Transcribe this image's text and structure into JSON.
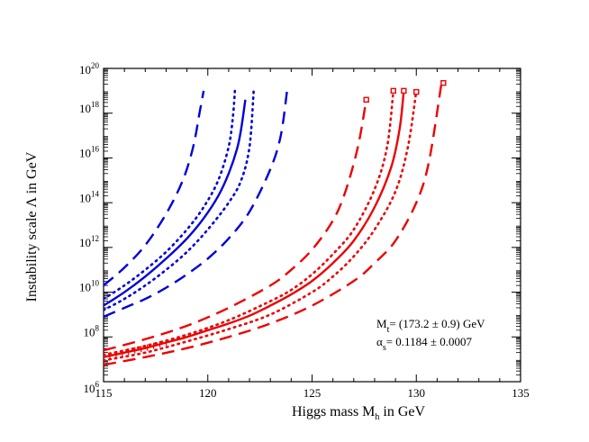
{
  "chart_data": {
    "type": "line",
    "title": "",
    "xlabel": {
      "main": "Higgs mass M",
      "sub": "h",
      "suffix": " in GeV"
    },
    "ylabel": "Instability scale Λ in GeV",
    "xlim": [
      115,
      135
    ],
    "ylim": [
      1000000.0,
      1e+20
    ],
    "yscale": "log",
    "x_ticks": [
      {
        "value": 115,
        "label": "115"
      },
      {
        "value": 120,
        "label": "120"
      },
      {
        "value": 125,
        "label": "125"
      },
      {
        "value": 130,
        "label": "130"
      },
      {
        "value": 135,
        "label": "135"
      }
    ],
    "y_ticks": [
      {
        "exp": 6,
        "base": "10",
        "pow": "6"
      },
      {
        "exp": 8,
        "base": "10",
        "pow": "8"
      },
      {
        "exp": 10,
        "base": "10",
        "pow": "10"
      },
      {
        "exp": 12,
        "base": "10",
        "pow": "12"
      },
      {
        "exp": 14,
        "base": "10",
        "pow": "14"
      },
      {
        "exp": 16,
        "base": "10",
        "pow": "16"
      },
      {
        "exp": 18,
        "base": "10",
        "pow": "18"
      },
      {
        "exp": 20,
        "base": "10",
        "pow": "20"
      }
    ],
    "colors": {
      "blue": "#0000dd",
      "red": "#ee0000",
      "axis": "#000000"
    },
    "series": [
      {
        "name": "blue-central",
        "color": "#0000dd",
        "style": "solid",
        "x": [
          115,
          116,
          117,
          118,
          119,
          119.8,
          120.5,
          121,
          121.4,
          121.6,
          121.8
        ],
        "log10_y": [
          9.4,
          10.0,
          10.7,
          11.5,
          12.4,
          13.3,
          14.3,
          15.3,
          16.4,
          17.3,
          18.6
        ]
      },
      {
        "name": "blue-dotted-upper",
        "color": "#0000dd",
        "style": "dotted",
        "x": [
          115,
          116,
          117,
          118,
          119,
          119.8,
          120.5,
          121,
          121.2,
          121.3
        ],
        "log10_y": [
          9.7,
          10.3,
          11.0,
          11.8,
          12.8,
          13.8,
          15.0,
          16.5,
          17.8,
          19.0
        ]
      },
      {
        "name": "blue-dotted-lower",
        "color": "#0000dd",
        "style": "dotted",
        "x": [
          115,
          116,
          117,
          118,
          119,
          120,
          121,
          121.6,
          122,
          122.2
        ],
        "log10_y": [
          9.2,
          9.7,
          10.3,
          11.0,
          11.8,
          12.8,
          14.0,
          15.0,
          16.5,
          19.0
        ]
      },
      {
        "name": "blue-dashed-upper",
        "color": "#0000dd",
        "style": "dashed",
        "x": [
          115,
          116,
          117,
          118,
          118.8,
          119.3,
          119.6,
          119.8
        ],
        "log10_y": [
          10.3,
          11.1,
          12.1,
          13.5,
          15.0,
          16.5,
          18.0,
          19.0
        ]
      },
      {
        "name": "blue-dashed-lower",
        "color": "#0000dd",
        "style": "dashed",
        "x": [
          115,
          116,
          117,
          118,
          119,
          120,
          121,
          122,
          123,
          123.5,
          123.8
        ],
        "log10_y": [
          8.9,
          9.3,
          9.7,
          10.2,
          10.8,
          11.5,
          12.4,
          13.6,
          15.5,
          17.0,
          19.0
        ]
      },
      {
        "name": "red-central",
        "color": "#ee0000",
        "style": "solid",
        "x": [
          115,
          116,
          117,
          118,
          119,
          120,
          121,
          122,
          123,
          124,
          125,
          126,
          127,
          128,
          128.8,
          129.2,
          129.4
        ],
        "log10_y": [
          7.1,
          7.3,
          7.5,
          7.75,
          8.0,
          8.3,
          8.6,
          8.95,
          9.4,
          9.9,
          10.5,
          11.3,
          12.3,
          13.8,
          15.6,
          17.3,
          19.0
        ]
      },
      {
        "name": "red-dotted-upper",
        "color": "#ee0000",
        "style": "dotted",
        "x": [
          115,
          117,
          119,
          121,
          123,
          124,
          125,
          126,
          127,
          128,
          128.6,
          128.9
        ],
        "log10_y": [
          7.2,
          7.6,
          8.1,
          8.75,
          9.6,
          10.1,
          10.8,
          11.7,
          12.8,
          14.6,
          16.5,
          19.0
        ]
      },
      {
        "name": "red-dotted-lower",
        "color": "#ee0000",
        "style": "dotted",
        "x": [
          115,
          117,
          119,
          121,
          123,
          125,
          126,
          127,
          128,
          129,
          129.6,
          130
        ],
        "log10_y": [
          6.95,
          7.3,
          7.8,
          8.35,
          9.0,
          10.0,
          10.7,
          11.6,
          12.8,
          14.5,
          16.5,
          19.0
        ]
      },
      {
        "name": "red-dashed-upper",
        "color": "#ee0000",
        "style": "dashed",
        "x": [
          115,
          117,
          119,
          121,
          123,
          124,
          125,
          126,
          126.6,
          127.2,
          127.6
        ],
        "log10_y": [
          7.4,
          7.9,
          8.5,
          9.3,
          10.3,
          11.0,
          11.9,
          13.2,
          14.5,
          16.5,
          18.6
        ]
      },
      {
        "name": "red-dashed-lower",
        "color": "#ee0000",
        "style": "dashed",
        "x": [
          115,
          117,
          119,
          121,
          123,
          125,
          127,
          128,
          129,
          130,
          130.6,
          131.2
        ],
        "log10_y": [
          6.75,
          7.1,
          7.5,
          8.0,
          8.6,
          9.4,
          10.5,
          11.3,
          12.3,
          14.0,
          15.8,
          19.3
        ]
      }
    ],
    "endpoint_markers": [
      {
        "x": 127.6,
        "log10_y": 18.6,
        "color": "#ee0000"
      },
      {
        "x": 128.9,
        "log10_y": 19.0,
        "color": "#ee0000"
      },
      {
        "x": 129.4,
        "log10_y": 19.0,
        "color": "#ee0000"
      },
      {
        "x": 130.0,
        "log10_y": 18.95,
        "color": "#ee0000"
      },
      {
        "x": 131.3,
        "log10_y": 19.35,
        "color": "#ee0000"
      }
    ],
    "error_ticks": {
      "color": "#ee0000",
      "x": [
        115.3,
        115.6,
        115.9,
        116.2,
        116.5,
        116.8,
        117.1,
        117.4,
        117.7,
        118.0
      ],
      "series": "red-central"
    },
    "annotations": {
      "line1": {
        "main": "M",
        "sub": "t",
        "rest": "= (173.2 ± 0.9) GeV"
      },
      "line2": {
        "main": "α",
        "sub": "s",
        "rest": "= 0.1184 ± 0.0007"
      }
    }
  }
}
